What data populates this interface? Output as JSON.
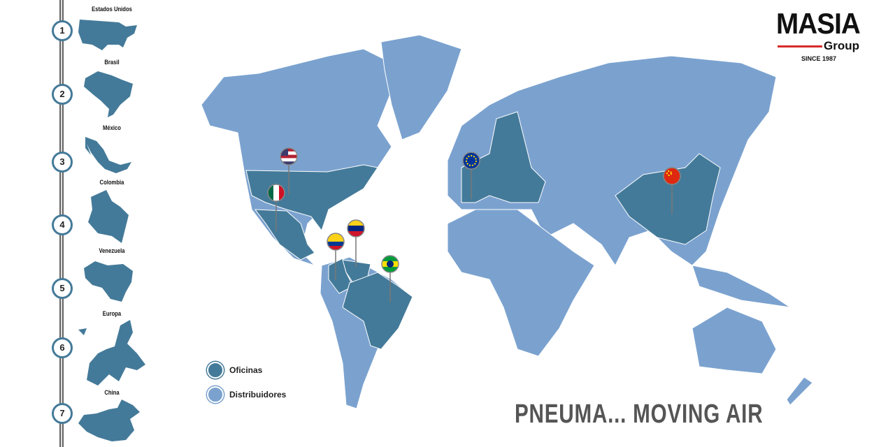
{
  "brand": {
    "name": "MASIA",
    "sub": "Group",
    "since": "SINCE 1987",
    "accent": "#d92b2b"
  },
  "colors": {
    "office": "#447a99",
    "distributor": "#7ba2cf"
  },
  "locations": [
    {
      "num": "1",
      "name": "Estados Unidos"
    },
    {
      "num": "2",
      "name": "Brasil"
    },
    {
      "num": "3",
      "name": "México"
    },
    {
      "num": "4",
      "name": "Colombia"
    },
    {
      "num": "5",
      "name": "Venezuela"
    },
    {
      "num": "6",
      "name": "Europa"
    },
    {
      "num": "7",
      "name": "China"
    }
  ],
  "pins": [
    "usa-flag",
    "mexico-flag",
    "colombia-flag",
    "venezuela-flag",
    "brazil-flag",
    "eu-flag",
    "china-flag"
  ],
  "legend": {
    "office": "Oficinas",
    "distributor": "Distribuidores"
  },
  "tagline": "PNEUMA... MOVING AIR"
}
